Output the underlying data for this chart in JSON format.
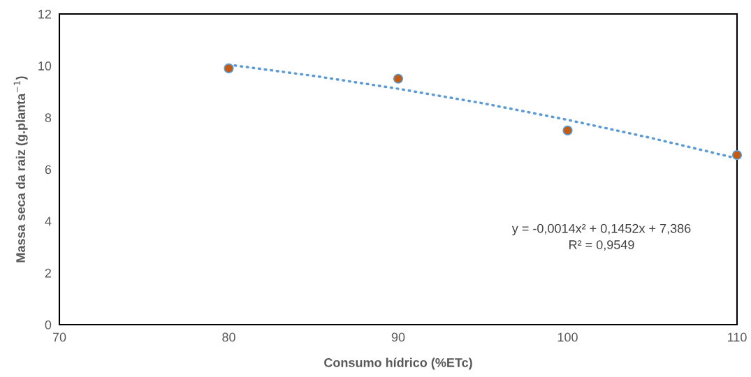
{
  "chart_data": {
    "type": "scatter",
    "xlabel": "Consumo hídrico (%ETc)",
    "ylabel": "Massa seca da raiz (g.planta$^{−1}$)",
    "series": [
      {
        "color": "#c55a11",
        "x": [
          80,
          90,
          100,
          110
        ],
        "values": [
          9.9,
          9.5,
          7.5,
          6.55
        ],
        "marker": "circle"
      },
      {
        "type": "line",
        "color": "#5b9bd5",
        "x": [
          80,
          85,
          90,
          95,
          100,
          105,
          110
        ],
        "values": [
          10.04,
          9.61,
          9.11,
          8.55,
          7.91,
          7.2,
          6.42
        ],
        "line_style": "dotted"
      }
    ],
    "xlim": [
      70,
      110
    ],
    "xticks": [
      70,
      80,
      90,
      100,
      110
    ],
    "ylim": [
      0,
      12
    ],
    "yticks": [
      0,
      2,
      4,
      6,
      8,
      10,
      12
    ],
    "annotations": [
      "y = -0,0014x² + 0,1452x + 7,386\nR² = 0,9549"
    ],
    "grid": false,
    "legend": false
  }
}
